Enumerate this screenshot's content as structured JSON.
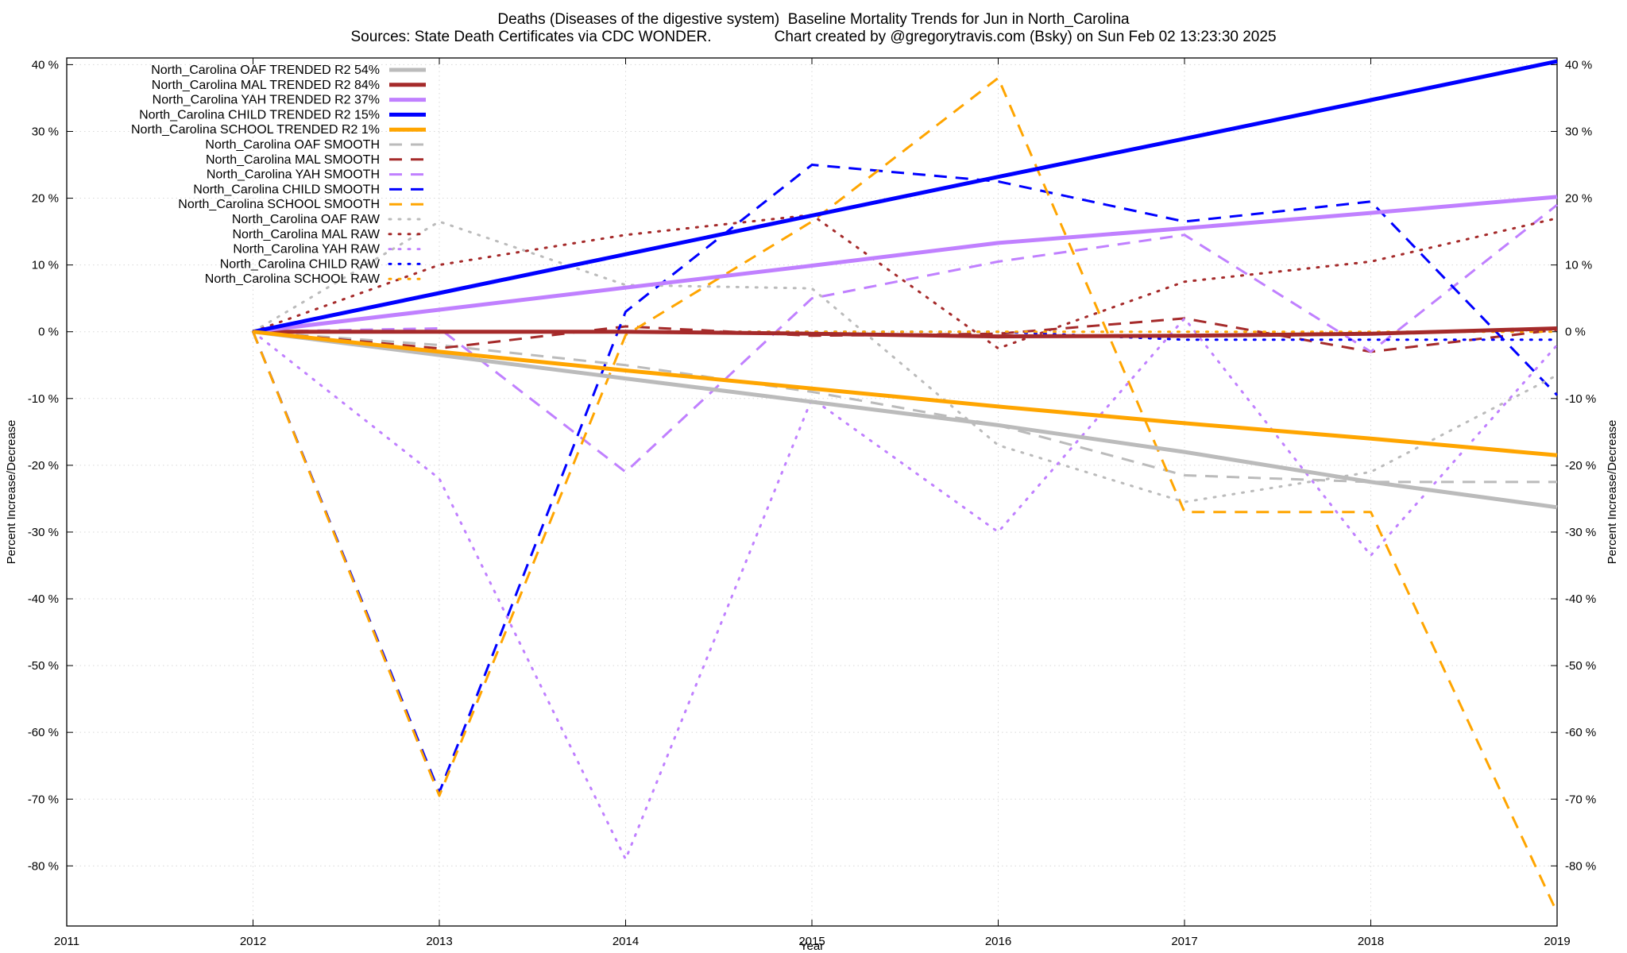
{
  "chart_data": {
    "type": "line",
    "title": "Deaths (Diseases of the digestive system)  Baseline Mortality Trends for Jun in North_Carolina",
    "subtitle": "Sources: State Death Certificates via CDC WONDER.               Chart created by @gregorytravis.com (Bsky) on Sun Feb 02 13:23:30 2025",
    "xlabel": "Year",
    "ylabel": "Percent Increase/Decrease",
    "xlim": [
      2011,
      2019
    ],
    "ylim": [
      -89,
      41
    ],
    "x_ticks": [
      "2011",
      "2012",
      "2013",
      "2014",
      "2015",
      "2016",
      "2017",
      "2018",
      "2019"
    ],
    "y_ticks": [
      "40 %",
      "30 %",
      "20 %",
      "10 %",
      "0 %",
      "-10 %",
      "-20 %",
      "-30 %",
      "-40 %",
      "-50 %",
      "-60 %",
      "-70 %",
      "-80 %"
    ],
    "grid": true,
    "legend_position": "top-left",
    "series": [
      {
        "name": "North_Carolina OAF TRENDED R2  54%",
        "style": "solid",
        "color": "#bbbbbb",
        "x": [
          2012,
          2013,
          2014,
          2015,
          2016,
          2017,
          2018,
          2019
        ],
        "y": [
          0,
          -3.5,
          -7,
          -10.5,
          -14,
          -18,
          -22.5,
          -26.3
        ]
      },
      {
        "name": "North_Carolina MAL TRENDED R2  84%",
        "style": "solid",
        "color": "#a52a2a",
        "x": [
          2012,
          2013,
          2014,
          2015,
          2016,
          2017,
          2018,
          2019
        ],
        "y": [
          0,
          0,
          0,
          -0.3,
          -0.7,
          -0.6,
          -0.3,
          0.5
        ]
      },
      {
        "name": "North_Carolina YAH TRENDED R2  37%",
        "style": "solid",
        "color": "#c080ff",
        "x": [
          2012,
          2013,
          2014,
          2015,
          2016,
          2017,
          2018,
          2019
        ],
        "y": [
          0,
          3.3,
          6.6,
          9.9,
          13.3,
          15.5,
          17.8,
          20.2
        ]
      },
      {
        "name": "North_Carolina CHILD TRENDED R2  15%",
        "style": "solid",
        "color": "#0000ff",
        "x": [
          2012,
          2013,
          2014,
          2015,
          2016,
          2017,
          2018,
          2019
        ],
        "y": [
          0,
          5.8,
          11.6,
          17.4,
          23.2,
          28.9,
          34.7,
          40.5
        ]
      },
      {
        "name": "North_Carolina SCHOOL TRENDED R2   1%",
        "style": "solid",
        "color": "#ffa500",
        "x": [
          2012,
          2013,
          2014,
          2015,
          2016,
          2017,
          2018,
          2019
        ],
        "y": [
          0,
          -3,
          -5.8,
          -8.5,
          -11.2,
          -13.7,
          -16,
          -18.5
        ]
      },
      {
        "name": "North_Carolina OAF SMOOTH",
        "style": "dash",
        "color": "#bbbbbb",
        "x": [
          2012,
          2013,
          2014,
          2015,
          2016,
          2017,
          2018,
          2019
        ],
        "y": [
          0,
          -2,
          -5,
          -9,
          -14,
          -21.5,
          -22.5,
          -22.5
        ]
      },
      {
        "name": "North_Carolina MAL SMOOTH",
        "style": "dash",
        "color": "#a52a2a",
        "x": [
          2012,
          2013,
          2014,
          2015,
          2016,
          2017,
          2018,
          2019
        ],
        "y": [
          0,
          -2.5,
          0.8,
          -0.6,
          -0.3,
          2,
          -3,
          0.3
        ]
      },
      {
        "name": "North_Carolina YAH SMOOTH",
        "style": "dash",
        "color": "#c080ff",
        "x": [
          2012,
          2013,
          2014,
          2015,
          2016,
          2017,
          2018,
          2019
        ],
        "y": [
          0,
          0.5,
          -21,
          5,
          10.5,
          14.5,
          -3,
          19
        ]
      },
      {
        "name": "North_Carolina CHILD SMOOTH",
        "style": "dash",
        "color": "#0000ff",
        "x": [
          2012,
          2013,
          2014,
          2015,
          2016,
          2017,
          2018,
          2019
        ],
        "y": [
          0,
          -69,
          3,
          25,
          22.5,
          16.5,
          19.5,
          -9.5
        ]
      },
      {
        "name": "North_Carolina SCHOOL SMOOTH",
        "style": "dash",
        "color": "#ffa500",
        "x": [
          2012,
          2013,
          2014,
          2015,
          2016,
          2017,
          2018,
          2019
        ],
        "y": [
          0,
          -69.5,
          -0.5,
          16.5,
          38,
          -27,
          -27,
          -87
        ]
      },
      {
        "name": "North_Carolina OAF RAW",
        "style": "dot",
        "color": "#bbbbbb",
        "x": [
          2012,
          2013,
          2014,
          2015,
          2016,
          2017,
          2018,
          2019
        ],
        "y": [
          0,
          16.5,
          7,
          6.5,
          -17,
          -25.5,
          -21,
          -6.5
        ]
      },
      {
        "name": "North_Carolina MAL RAW",
        "style": "dot",
        "color": "#a52a2a",
        "x": [
          2012,
          2013,
          2014,
          2015,
          2016,
          2017,
          2018,
          2019
        ],
        "y": [
          0,
          10,
          14.5,
          17.5,
          -2.5,
          7.5,
          10.5,
          17
        ]
      },
      {
        "name": "North_Carolina YAH RAW",
        "style": "dot",
        "color": "#c080ff",
        "x": [
          2012,
          2013,
          2014,
          2015,
          2016,
          2017,
          2018,
          2019
        ],
        "y": [
          0,
          -22,
          -79,
          -10,
          -30,
          2,
          -33.5,
          -2
        ]
      },
      {
        "name": "North_Carolina CHILD RAW",
        "style": "dot",
        "color": "#0000ff",
        "x": [
          2012,
          2013,
          2014,
          2015,
          2016,
          2017,
          2018,
          2019
        ],
        "y": [
          0,
          0,
          0,
          0,
          0,
          -1.2,
          -1.2,
          -1.2
        ]
      },
      {
        "name": "North_Carolina SCHOOL RAW",
        "style": "dot",
        "color": "#ffa500",
        "x": [
          2012,
          2013,
          2014,
          2015,
          2016,
          2017,
          2018,
          2019
        ],
        "y": [
          0,
          0,
          0,
          0,
          0,
          0,
          0,
          0
        ]
      }
    ]
  }
}
